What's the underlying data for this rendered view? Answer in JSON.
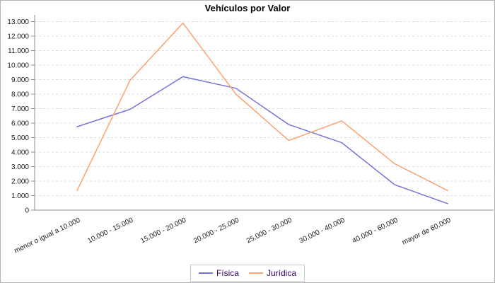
{
  "title": "Vehículos por Valor",
  "colors": {
    "fisica_line": "#7373d9",
    "juridica_line": "#fca26f",
    "gridline": "#dcdcdc",
    "axis": "#8c8c8c",
    "tick_label": "#1a1a1a",
    "legend_text": "#330066",
    "background": "#ffffff"
  },
  "chart_data": {
    "type": "line",
    "title": "Vehículos por Valor",
    "categories": [
      "menor o igual a 10.000",
      "10.000 - 15.000",
      "15.000 - 20.000",
      "20.000 - 25.000",
      "25.000 - 30.000",
      "30.000 - 40.000",
      "40.000 - 60.000",
      "mayor de 60.000"
    ],
    "series": [
      {
        "name": "Física",
        "color": "#7373d9",
        "values": [
          5750,
          6950,
          9200,
          8400,
          5900,
          4650,
          1750,
          450
        ]
      },
      {
        "name": "Jurídica",
        "color": "#fca26f",
        "values": [
          1350,
          8950,
          12900,
          8000,
          4800,
          6150,
          3200,
          1350
        ]
      }
    ],
    "ylim": [
      0,
      13000
    ],
    "ytick_step": 1000,
    "ytick_labels": [
      "0",
      "1.000",
      "2.000",
      "3.000",
      "4.000",
      "5.000",
      "6.000",
      "7.000",
      "8.000",
      "9.000",
      "10.000",
      "11.000",
      "12.000",
      "13.000"
    ],
    "grid": "horizontal-dashed",
    "legend_position": "bottom-center",
    "xlabel": "",
    "ylabel": ""
  },
  "legend": {
    "items": [
      {
        "label": "Física"
      },
      {
        "label": "Jurídica"
      }
    ]
  }
}
